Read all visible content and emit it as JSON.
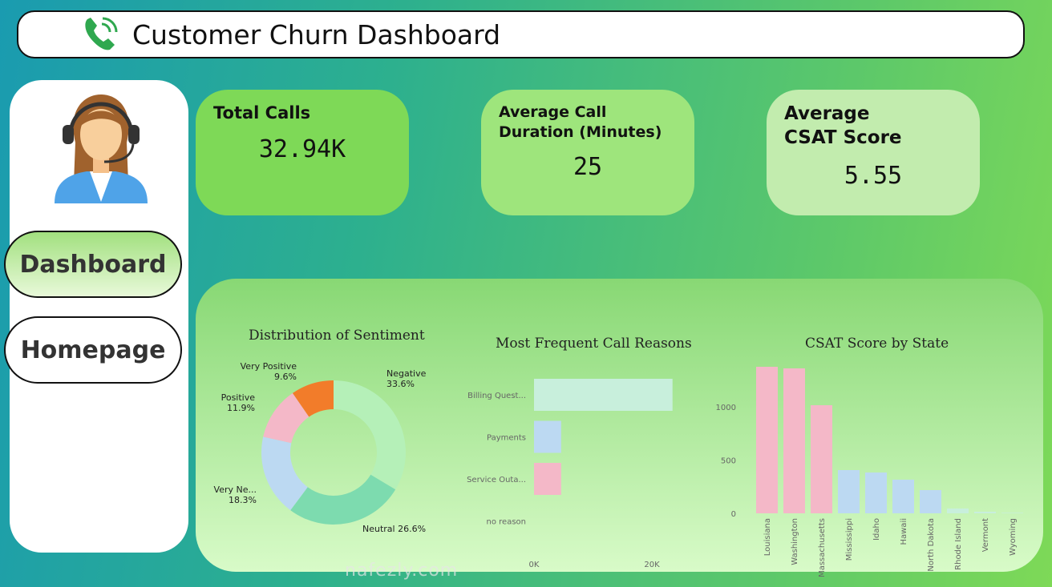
{
  "header": {
    "title": "Customer Churn Dashboard",
    "icon": "phone-icon"
  },
  "nav": {
    "dashboard": "Dashboard",
    "homepage": "Homepage"
  },
  "kpis": [
    {
      "label": "Total Calls",
      "value": "32.94K"
    },
    {
      "label": "Average Call Duration (Minutes)",
      "value": "25"
    },
    {
      "label": "Average CSAT Score",
      "value": "5.55"
    }
  ],
  "watermark": "nafezly.com",
  "chart_data": [
    {
      "type": "pie",
      "title": "Distribution of Sentiment",
      "labels": [
        "Negative",
        "Neutral",
        "Very Ne...",
        "Positive",
        "Very Positive"
      ],
      "values": [
        33.6,
        26.6,
        18.3,
        11.9,
        9.6
      ],
      "value_labels": [
        "33.6%",
        "26.6%",
        "18.3%",
        "11.9%",
        "9.6%"
      ],
      "colors": [
        "#b5f0b8",
        "#7ddbaf",
        "#bcd9f2",
        "#f4b8c8",
        "#f27c2a"
      ]
    },
    {
      "type": "bar",
      "orientation": "horizontal",
      "title": "Most Frequent Call Reasons",
      "categories": [
        "Billing Quest...",
        "Payments",
        "Service Outa...",
        "no reason"
      ],
      "values": [
        23.5,
        4.6,
        4.6,
        0
      ],
      "unit": "K",
      "xticks": [
        "0K",
        "20K"
      ],
      "colors": [
        "#c8efdc",
        "#bcd9f2",
        "#f4b8c8",
        "#c8efdc"
      ]
    },
    {
      "type": "bar",
      "title": "CSAT Score by State",
      "categories": [
        "Louisiana",
        "Washington",
        "Massachusetts",
        "Mississippi",
        "Idaho",
        "Hawaii",
        "North Dakota",
        "Rhode Island",
        "Vermont",
        "Wyoming"
      ],
      "values": [
        1376,
        1361,
        1015,
        406,
        383,
        316,
        218,
        45,
        15,
        5
      ],
      "yticks": [
        "0",
        "500",
        "1000"
      ],
      "ylim": [
        0,
        1400
      ],
      "colors": [
        "#f4b8c8",
        "#f4b8c8",
        "#f4b8c8",
        "#bcd9f2",
        "#bcd9f2",
        "#bcd9f2",
        "#bcd9f2",
        "#c8efdc",
        "#c8efdc",
        "#c8efdc"
      ]
    }
  ]
}
